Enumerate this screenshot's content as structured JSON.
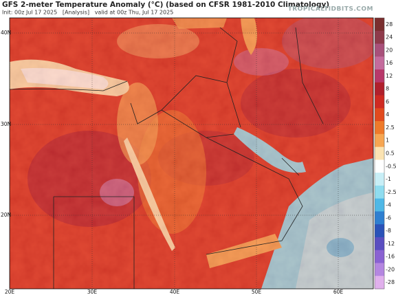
{
  "header": {
    "title": "GFS 2-meter Temperature Anomaly (°C) (based on CFSR 1981-2010 Climatology)",
    "subtitle": "Init: 00z Jul 17 2025   [Analysis]   valid at 00z Thu, Jul 17 2025",
    "watermark": "TROPICALTIDBITS.COM"
  },
  "map": {
    "lat_labels": [
      "40N",
      "30N",
      "20N"
    ],
    "lon_labels": [
      "20E",
      "30E",
      "40E",
      "50E",
      "60E"
    ]
  },
  "colorbar": {
    "labels": [
      28,
      24,
      20,
      16,
      12,
      8,
      6,
      4,
      2.5,
      1,
      0.5,
      -0.5,
      -1,
      -2.5,
      -4,
      -6,
      -8,
      -12,
      -16,
      -20,
      -28
    ],
    "colors": [
      "#7a2e2e",
      "#8e3a4a",
      "#a8507a",
      "#c46b9c",
      "#b8386a",
      "#b0202c",
      "#cf2a22",
      "#e14a1e",
      "#ee7a2a",
      "#f6a652",
      "#fbe3b2",
      "#ffffff",
      "#c8eef6",
      "#8fdcef",
      "#4fb8e6",
      "#2e7fd0",
      "#2a52b8",
      "#5a4ec0",
      "#8a62d2",
      "#b486e0",
      "#e0b0ec"
    ]
  }
}
